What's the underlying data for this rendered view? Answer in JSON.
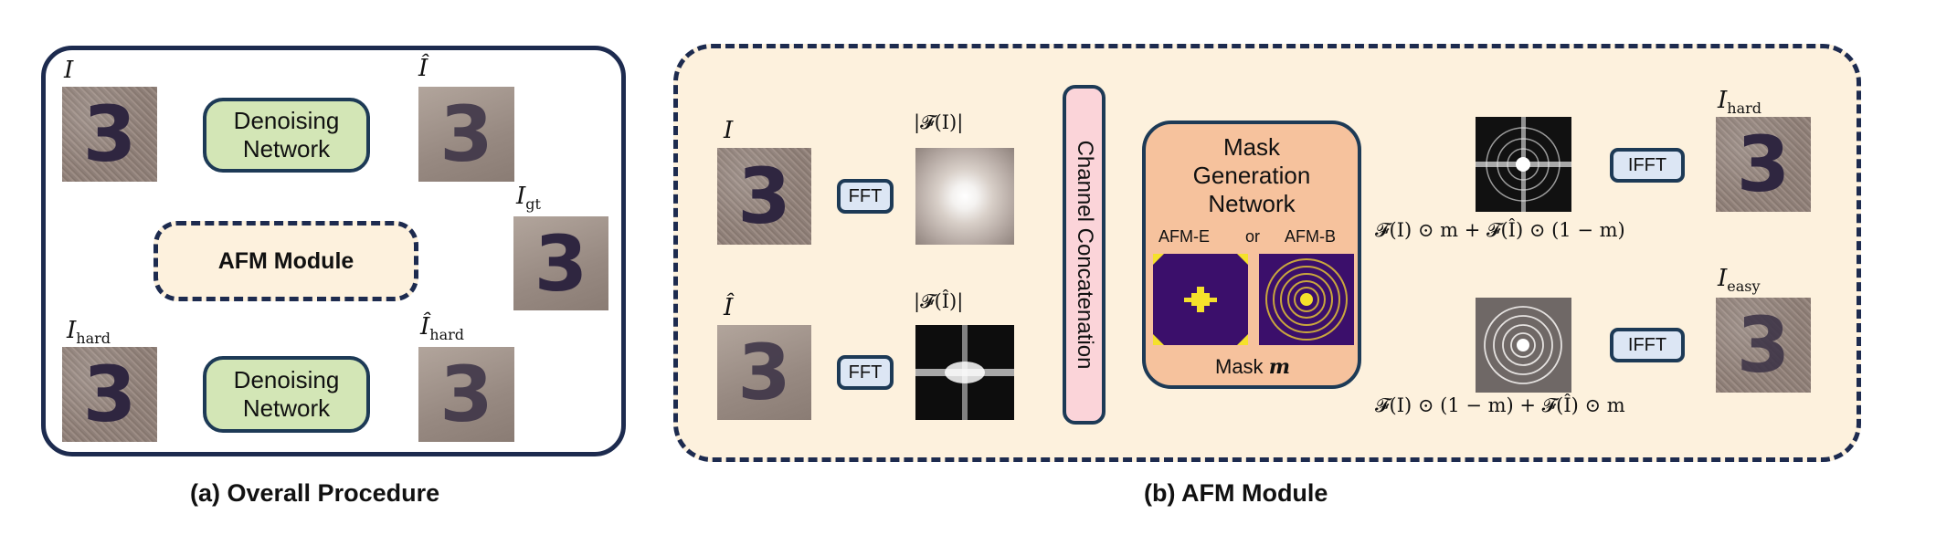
{
  "panel_a": {
    "caption": "(a) Overall Procedure",
    "denoise_top": [
      "Denoising",
      "Network"
    ],
    "denoise_bottom": [
      "Denoising",
      "Network"
    ],
    "afm_label": "AFM Module",
    "label_I": "I",
    "label_Ihat": "Î",
    "label_Igt": {
      "base": "I",
      "sub": "gt"
    },
    "label_Ihard": {
      "base": "I",
      "sub": "hard"
    },
    "label_Ihat_hard": {
      "base": "Î",
      "sub": "hard"
    },
    "digit": "3"
  },
  "panel_b": {
    "caption": "(b) AFM Module",
    "label_I": "I",
    "label_Ihat": "Î",
    "fft_label": "FFT",
    "spec_top_label": "|𝓕(I)|",
    "spec_bottom_label": "|𝓕(Î)|",
    "concat_label": "Channel Concatenation",
    "mgn_title": [
      "Mask",
      "Generation",
      "Network"
    ],
    "afm_e": "AFM-E",
    "or": "or",
    "afm_b": "AFM-B",
    "mask_label": "Mask",
    "mask_symbol": "m",
    "formula_top": "𝓕(I) ⊙ m + 𝓕(Î) ⊙ (1 − m)",
    "formula_bottom": "𝓕(I) ⊙ (1 − m) + 𝓕(Î) ⊙ m",
    "ifft_label": "IFFT",
    "out_top": {
      "base": "I",
      "sub": "hard"
    },
    "out_bottom": {
      "base": "I",
      "sub": "easy"
    },
    "digit": "3"
  },
  "colors": {
    "navy": "#1d2b4f",
    "green": "#d3e6b6",
    "cream": "#fdf1dd",
    "fft_blue": "#dce6f4",
    "concat_pink": "#fbd4d9",
    "mask_orange": "#f6c29d",
    "orange_arrow": "#c8601e"
  }
}
